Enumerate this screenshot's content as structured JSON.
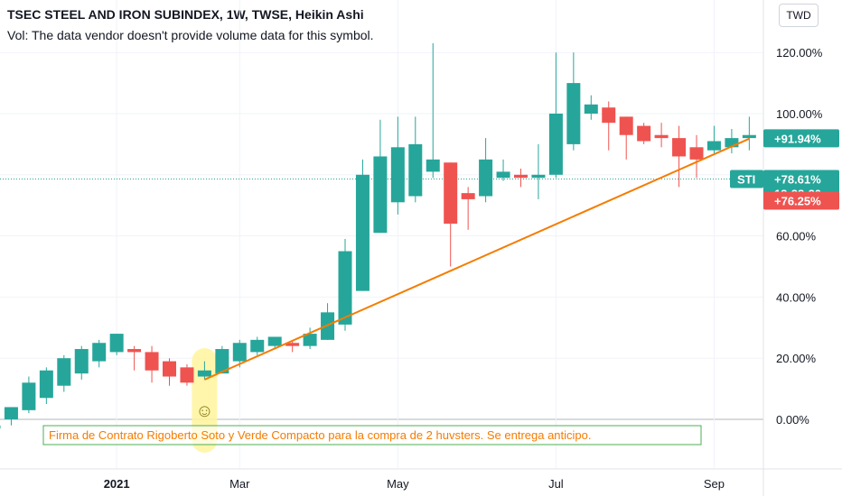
{
  "header": {
    "title": "TSEC STEEL AND IRON SUBINDEX, 1W, TWSE, Heikin Ashi",
    "subtitle": "Vol: The data vendor doesn't provide volume data for this symbol."
  },
  "currency_button": "TWD",
  "colors": {
    "up": "#26a69a",
    "down": "#ef5350",
    "trendline": "#f57c00",
    "highlight": "#fff59d",
    "note_border": "#4caf50",
    "grid": "#f0f3fa"
  },
  "chart_data": {
    "type": "candlestick",
    "style": "Heikin Ashi",
    "ylim": [
      -0.12,
      1.32
    ],
    "y_ticks": [
      0,
      0.2,
      0.4,
      0.6,
      0.8,
      1.0,
      1.2
    ],
    "y_tick_labels": [
      "0.00%",
      "20.00%",
      "40.00%",
      "60.00%",
      "",
      "100.00%",
      "120.00%"
    ],
    "x_ticks": [
      {
        "label": "2021",
        "index": 7,
        "bold": true
      },
      {
        "label": "Mar",
        "index": 14,
        "bold": false
      },
      {
        "label": "May",
        "index": 23,
        "bold": false
      },
      {
        "label": "Jul",
        "index": 32,
        "bold": false
      },
      {
        "label": "Sep",
        "index": 41,
        "bold": false
      }
    ],
    "candles": [
      {
        "o": -0.03,
        "h": 0.0,
        "l": -0.09,
        "c": -0.02
      },
      {
        "o": 0.0,
        "h": 0.04,
        "l": -0.02,
        "c": 0.04
      },
      {
        "o": 0.03,
        "h": 0.14,
        "l": 0.02,
        "c": 0.12
      },
      {
        "o": 0.07,
        "h": 0.17,
        "l": 0.05,
        "c": 0.16
      },
      {
        "o": 0.11,
        "h": 0.21,
        "l": 0.09,
        "c": 0.2
      },
      {
        "o": 0.15,
        "h": 0.24,
        "l": 0.13,
        "c": 0.23
      },
      {
        "o": 0.19,
        "h": 0.26,
        "l": 0.17,
        "c": 0.25
      },
      {
        "o": 0.22,
        "h": 0.28,
        "l": 0.21,
        "c": 0.28
      },
      {
        "o": 0.23,
        "h": 0.24,
        "l": 0.16,
        "c": 0.22
      },
      {
        "o": 0.22,
        "h": 0.24,
        "l": 0.12,
        "c": 0.16
      },
      {
        "o": 0.19,
        "h": 0.2,
        "l": 0.11,
        "c": 0.14
      },
      {
        "o": 0.17,
        "h": 0.18,
        "l": 0.11,
        "c": 0.12
      },
      {
        "o": 0.14,
        "h": 0.19,
        "l": 0.13,
        "c": 0.16
      },
      {
        "o": 0.15,
        "h": 0.24,
        "l": 0.15,
        "c": 0.23
      },
      {
        "o": 0.19,
        "h": 0.26,
        "l": 0.17,
        "c": 0.25
      },
      {
        "o": 0.22,
        "h": 0.27,
        "l": 0.21,
        "c": 0.26
      },
      {
        "o": 0.24,
        "h": 0.27,
        "l": 0.23,
        "c": 0.27
      },
      {
        "o": 0.25,
        "h": 0.255,
        "l": 0.22,
        "c": 0.24
      },
      {
        "o": 0.24,
        "h": 0.3,
        "l": 0.23,
        "c": 0.28
      },
      {
        "o": 0.26,
        "h": 0.38,
        "l": 0.26,
        "c": 0.35
      },
      {
        "o": 0.31,
        "h": 0.59,
        "l": 0.29,
        "c": 0.55
      },
      {
        "o": 0.42,
        "h": 0.85,
        "l": 0.42,
        "c": 0.8
      },
      {
        "o": 0.61,
        "h": 0.98,
        "l": 0.61,
        "c": 0.86
      },
      {
        "o": 0.71,
        "h": 0.99,
        "l": 0.67,
        "c": 0.89
      },
      {
        "o": 0.73,
        "h": 0.99,
        "l": 0.71,
        "c": 0.9
      },
      {
        "o": 0.81,
        "h": 1.23,
        "l": 0.79,
        "c": 0.85
      },
      {
        "o": 0.84,
        "h": 0.84,
        "l": 0.5,
        "c": 0.64
      },
      {
        "o": 0.74,
        "h": 0.76,
        "l": 0.62,
        "c": 0.72
      },
      {
        "o": 0.73,
        "h": 0.92,
        "l": 0.71,
        "c": 0.85
      },
      {
        "o": 0.79,
        "h": 0.85,
        "l": 0.78,
        "c": 0.81
      },
      {
        "o": 0.8,
        "h": 0.82,
        "l": 0.76,
        "c": 0.79
      },
      {
        "o": 0.79,
        "h": 0.9,
        "l": 0.72,
        "c": 0.8
      },
      {
        "o": 0.8,
        "h": 1.2,
        "l": 0.79,
        "c": 1.0
      },
      {
        "o": 0.9,
        "h": 1.2,
        "l": 0.88,
        "c": 1.1
      },
      {
        "o": 1.0,
        "h": 1.06,
        "l": 0.98,
        "c": 1.03
      },
      {
        "o": 1.02,
        "h": 1.04,
        "l": 0.88,
        "c": 0.97
      },
      {
        "o": 0.99,
        "h": 0.99,
        "l": 0.85,
        "c": 0.93
      },
      {
        "o": 0.96,
        "h": 0.97,
        "l": 0.9,
        "c": 0.91
      },
      {
        "o": 0.93,
        "h": 0.97,
        "l": 0.89,
        "c": 0.92
      },
      {
        "o": 0.92,
        "h": 0.96,
        "l": 0.76,
        "c": 0.86
      },
      {
        "o": 0.89,
        "h": 0.93,
        "l": 0.79,
        "c": 0.85
      },
      {
        "o": 0.88,
        "h": 0.96,
        "l": 0.87,
        "c": 0.91
      },
      {
        "o": 0.89,
        "h": 0.95,
        "l": 0.87,
        "c": 0.92
      },
      {
        "o": 0.92,
        "h": 0.99,
        "l": 0.88,
        "c": 0.93
      }
    ],
    "trendline": {
      "from": {
        "index": 12,
        "y": 0.13
      },
      "to": {
        "index": 43,
        "y": 0.918
      }
    },
    "highlight_index": 12,
    "annotation": {
      "text": "Firma de Contrato Rigoberto Soto y Verde Compacto para la compra de 2 huvsters. Se entrega anticipo.",
      "emoji": "☺"
    },
    "current_price": {
      "value": 0.7861,
      "label": "+78.61%",
      "symbol": "STI",
      "countdown": "13:28:20"
    },
    "last_value": {
      "value": 0.9194,
      "label": "+91.94%"
    },
    "other_value": {
      "value": 0.7625,
      "label": "+76.25%"
    }
  }
}
